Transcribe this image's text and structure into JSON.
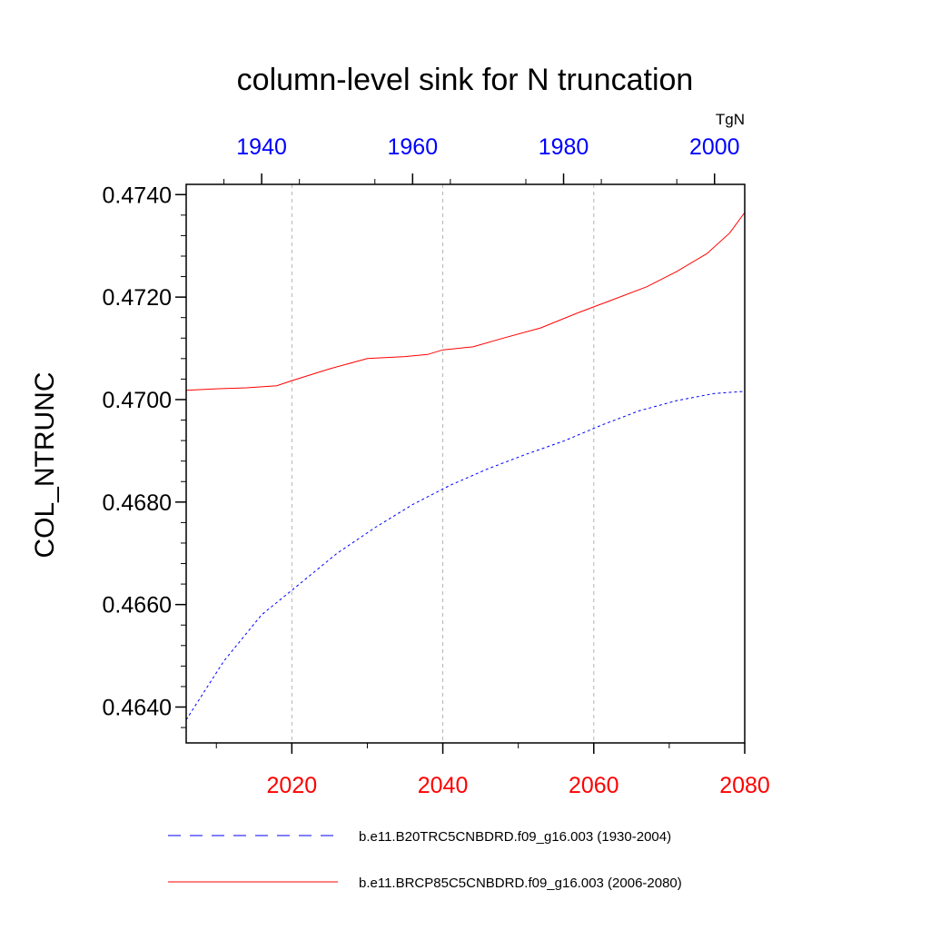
{
  "chart_data": {
    "type": "line",
    "title": "column-level sink for N truncation",
    "ylabel": "COL_NTRUNC",
    "units": "TgN",
    "ylim": [
      0.4633,
      0.4742
    ],
    "y_ticks": [
      "0.4640",
      "0.4660",
      "0.4680",
      "0.4700",
      "0.4720",
      "0.4740"
    ],
    "bottom_axis": {
      "xlim": [
        2006,
        2080
      ],
      "ticks": [
        "2020",
        "2040",
        "2060",
        "2080"
      ],
      "color": "#ff0000"
    },
    "top_axis": {
      "xlim": [
        1930,
        2004
      ],
      "ticks": [
        "1940",
        "1960",
        "1980",
        "2000"
      ],
      "color": "#0000ff"
    },
    "grid": "vertical dashed at bottom-axis major ticks",
    "legend_placement": "bottom",
    "series": [
      {
        "name": "b.e11.B20TRC5CNBDRD.f09_g16.003 (1930-2004)",
        "axis": "top",
        "color": "#0000ff",
        "dash": "dashed",
        "x": [
          1930,
          1935,
          1940,
          1945,
          1950,
          1955,
          1960,
          1965,
          1970,
          1975,
          1980,
          1985,
          1990,
          1995,
          2000,
          2004
        ],
        "y": [
          0.46375,
          0.4649,
          0.4658,
          0.4664,
          0.467,
          0.4675,
          0.46795,
          0.46833,
          0.46865,
          0.46893,
          0.46919,
          0.4695,
          0.46978,
          0.46998,
          0.47012,
          0.47016
        ]
      },
      {
        "name": "b.e11.BRCP85C5CNBDRD.f09_g16.003 (2006-2080)",
        "axis": "bottom",
        "color": "#ff0000",
        "dash": "solid",
        "x": [
          2006,
          2010,
          2014,
          2018,
          2020,
          2025,
          2030,
          2035,
          2038,
          2040,
          2044,
          2048,
          2053,
          2058,
          2062,
          2067,
          2071,
          2075,
          2078,
          2080
        ],
        "y": [
          0.47018,
          0.47021,
          0.47023,
          0.47027,
          0.47037,
          0.4706,
          0.4708,
          0.47084,
          0.47088,
          0.47097,
          0.47103,
          0.4712,
          0.4714,
          0.4717,
          0.47192,
          0.4722,
          0.4725,
          0.47285,
          0.47325,
          0.47365
        ]
      }
    ]
  }
}
